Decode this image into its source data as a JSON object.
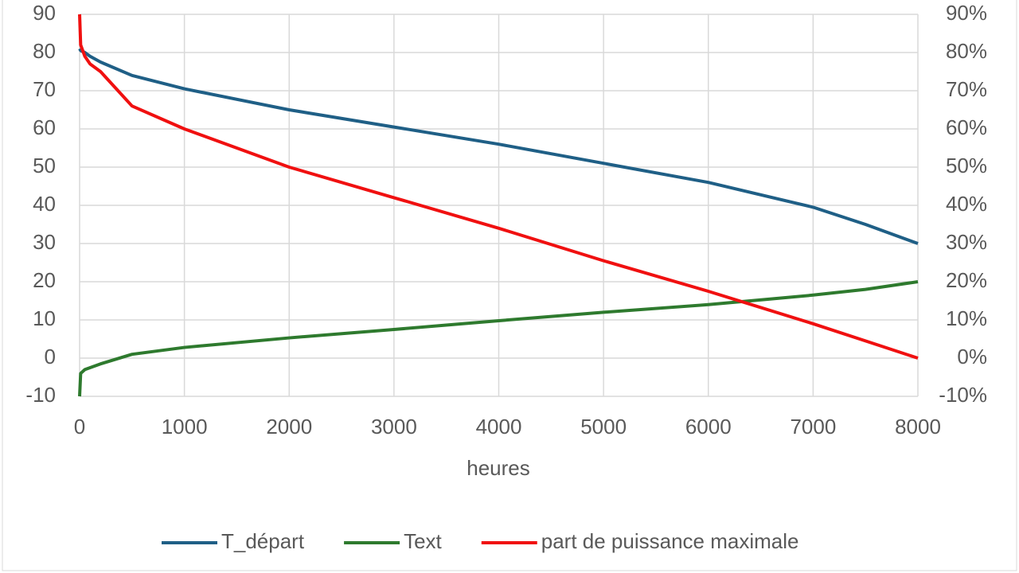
{
  "chart_data": {
    "type": "line",
    "x_label": "heures",
    "x": [
      0,
      10,
      50,
      100,
      200,
      500,
      1000,
      2000,
      3000,
      4000,
      5000,
      6000,
      7000,
      7500,
      8000
    ],
    "series": [
      {
        "name": "T_départ",
        "color": "#1f5f86",
        "values": [
          81,
          80.5,
          80,
          79,
          77.5,
          74,
          70.5,
          65,
          60.5,
          56,
          51,
          46,
          39.5,
          35,
          30
        ]
      },
      {
        "name": "Text",
        "color": "#2e7a2e",
        "values": [
          -10,
          -4,
          -3,
          -2.5,
          -1.5,
          1,
          2.8,
          5.3,
          7.5,
          9.8,
          12,
          14,
          16.5,
          18,
          20
        ]
      },
      {
        "name": "part de puissance maximale",
        "color": "#f01010",
        "axis": "y2",
        "values": [
          90,
          82,
          79,
          77,
          75,
          66,
          60,
          50,
          42,
          34,
          25.5,
          17.5,
          9,
          4.5,
          0
        ]
      }
    ],
    "xlim": [
      0,
      8000
    ],
    "xticks": [
      0,
      1000,
      2000,
      3000,
      4000,
      5000,
      6000,
      7000,
      8000
    ],
    "ylim": [
      -10,
      90
    ],
    "yticks": [
      -10,
      0,
      10,
      20,
      30,
      40,
      50,
      60,
      70,
      80,
      90
    ],
    "y2lim": [
      -10,
      90
    ],
    "y2ticks": [
      {
        "value": -10,
        "label": "-10%"
      },
      {
        "value": 0,
        "label": "0%"
      },
      {
        "value": 10,
        "label": "10%"
      },
      {
        "value": 20,
        "label": "20%"
      },
      {
        "value": 30,
        "label": "30%"
      },
      {
        "value": 40,
        "label": "40%"
      },
      {
        "value": 50,
        "label": "50%"
      },
      {
        "value": 60,
        "label": "60%"
      },
      {
        "value": 70,
        "label": "70%"
      },
      {
        "value": 80,
        "label": "80%"
      },
      {
        "value": 90,
        "label": "90%"
      }
    ],
    "grid": true,
    "legend": "bottom"
  }
}
